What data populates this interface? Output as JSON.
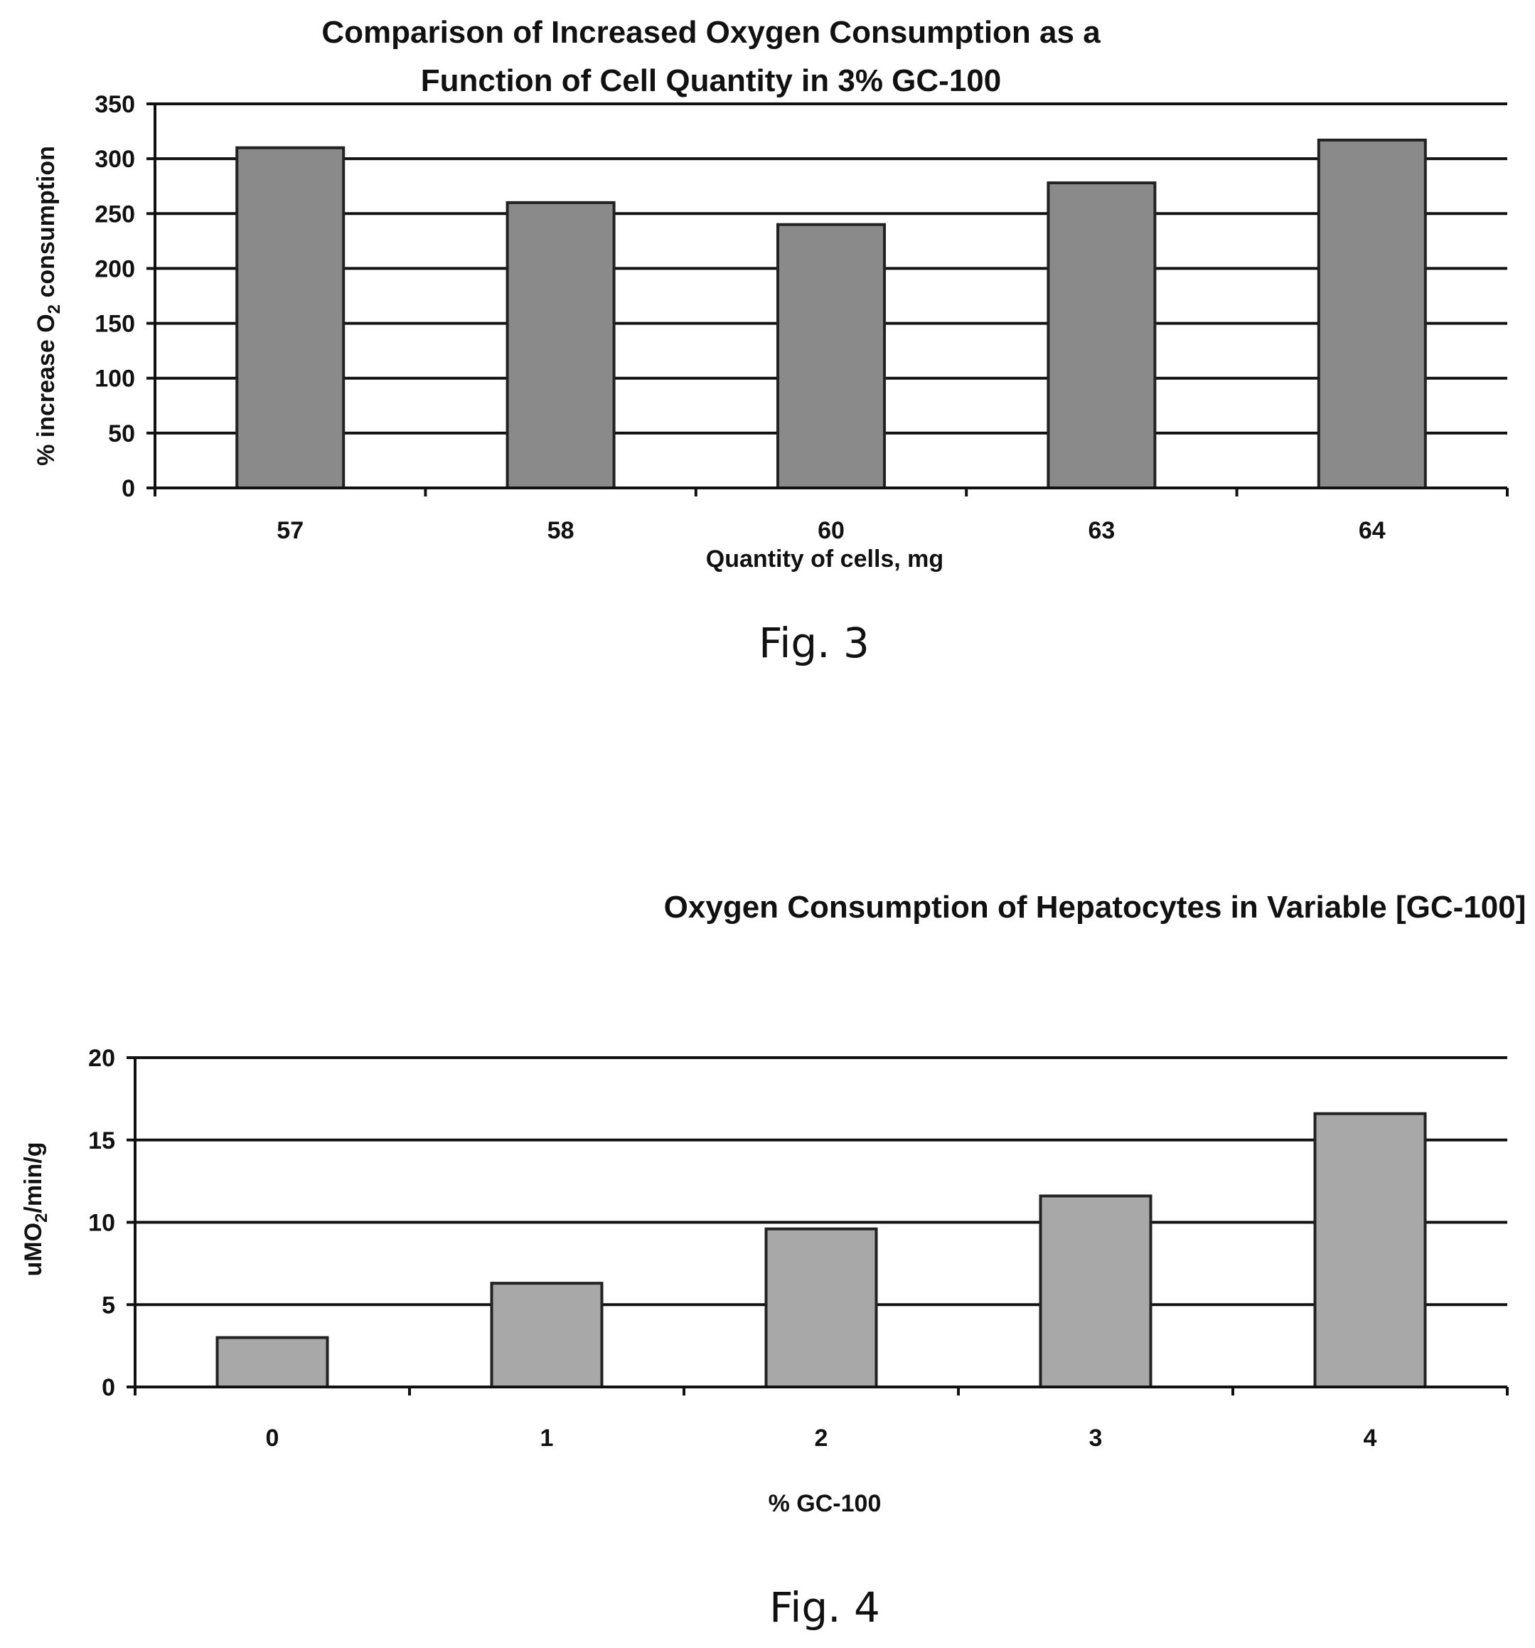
{
  "chart_data": [
    {
      "type": "bar",
      "title_lines": [
        "Comparison of Increased Oxygen Consumption as a",
        "Function of Cell Quantity in 3% GC-100"
      ],
      "categories": [
        "57",
        "58",
        "60",
        "63",
        "64"
      ],
      "values": [
        310,
        260,
        240,
        278,
        317
      ],
      "xlabel": "Quantity of cells, mg",
      "ylabel_pre": "% increase O",
      "ylabel_sub": "2",
      "ylabel_post": " consumption",
      "ylim": [
        0,
        350
      ],
      "yticks": [
        "0",
        "50",
        "100",
        "150",
        "200",
        "250",
        "300",
        "350"
      ],
      "grid": true,
      "bar_color": "#8a8a8a",
      "caption": "Fig. 3"
    },
    {
      "type": "bar",
      "title_lines": [
        "Oxygen Consumption of Hepatocytes in Variable [GC-100]"
      ],
      "categories": [
        "0",
        "1",
        "2",
        "3",
        "4"
      ],
      "values": [
        3,
        6.3,
        9.6,
        11.6,
        16.6
      ],
      "xlabel": "% GC-100",
      "ylabel_pre": "uMO",
      "ylabel_sub": "2",
      "ylabel_post": "/min/g",
      "ylim": [
        0,
        20
      ],
      "yticks": [
        "0",
        "5",
        "10",
        "15",
        "20"
      ],
      "grid": true,
      "bar_color": "#a8a8a8",
      "caption": "Fig. 4"
    }
  ]
}
